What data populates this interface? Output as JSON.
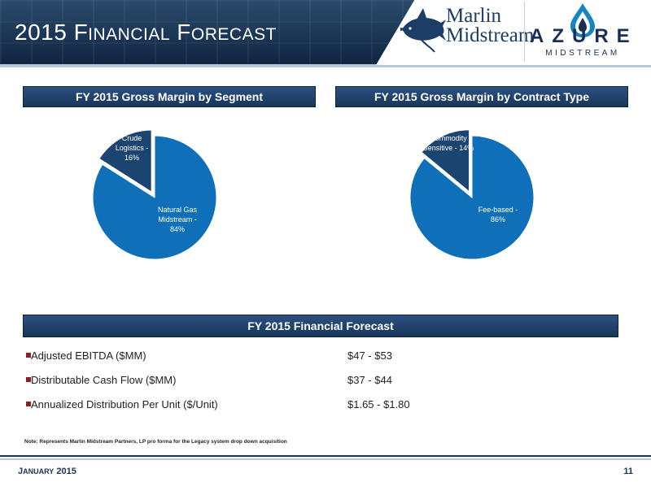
{
  "header": {
    "title_first": "2015 F",
    "title_small1": "INANCIAL",
    "title_mid": " F",
    "title_small2": "ORECAST",
    "logo_marlin_line1": "Marlin",
    "logo_marlin_line2": "Midstream",
    "logo_azure_word": "AZURE",
    "logo_azure_sub": "MIDSTREAM",
    "colors": {
      "header_bg": "#1a3453",
      "logo_navy": "#1a2f55"
    }
  },
  "segment_section": {
    "title": "FY 2015 Gross Margin by Segment"
  },
  "contract_section": {
    "title": "FY 2015 Gross Margin by Contract Type"
  },
  "chart_data": [
    {
      "type": "pie",
      "title": "FY 2015 Gross Margin by Segment",
      "slices": [
        {
          "label_line1": "Natural Gas",
          "label_line2": "Midstream -",
          "label_line3": "84%",
          "value": 84,
          "color": "#0f6fb8"
        },
        {
          "label_line1": "Crude",
          "label_line2": "Logistics -",
          "label_line3": "16%",
          "value": 16,
          "color": "#1b4470"
        }
      ]
    },
    {
      "type": "pie",
      "title": "FY 2015 Gross Margin by Contract Type",
      "slices": [
        {
          "label_line1": "Fee-based -",
          "label_line2": "86%",
          "value": 86,
          "color": "#0f6fb8"
        },
        {
          "label_line1": "Commodity",
          "label_line2": "Sensitive - 14%",
          "value": 14,
          "color": "#1b4470"
        }
      ]
    }
  ],
  "forecast": {
    "title": "FY 2015 Financial Forecast",
    "rows": [
      {
        "label": "Adjusted EBITDA ($MM)",
        "value": "$47 - $53"
      },
      {
        "label": "Distributable Cash Flow ($MM)",
        "value": "$37 - $44"
      },
      {
        "label": "Annualized Distribution Per Unit ($/Unit)",
        "value": "$1.65 - $1.80"
      }
    ],
    "bullet_color": "#8b1e1e"
  },
  "note": "Note: Represents Marlin Midstream Partners, LP pro forma for the Legacy system drop down acquisition",
  "footer": {
    "date_first": "J",
    "date_small": "ANUARY",
    "date_rest": " 2015",
    "page": "11"
  }
}
